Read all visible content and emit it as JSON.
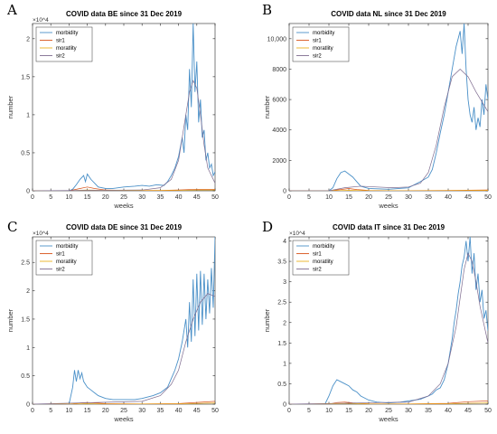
{
  "chart_data": [
    {
      "panel": "A",
      "type": "line",
      "title": "COVID data BE since 31 Dec 2019",
      "xlabel": "weeks",
      "ylabel": "number",
      "xlim": [
        0,
        50
      ],
      "ylim": [
        0,
        2.2
      ],
      "y_exponent_label": "×10^4",
      "xticks": [
        0,
        5,
        10,
        15,
        20,
        25,
        30,
        35,
        40,
        45,
        50
      ],
      "yticks": [
        "0",
        "0.5",
        "1",
        "1.5",
        "2"
      ],
      "ytick_values": [
        0,
        0.5,
        1,
        1.5,
        2
      ],
      "legend": [
        "morbidity",
        "sir1",
        "moratlity",
        "sir2"
      ],
      "legend_position": "top-left",
      "series": [
        {
          "name": "morbidity",
          "color": "#4a90c8",
          "x": [
            0,
            10,
            11,
            12,
            13,
            14,
            14.5,
            15,
            16,
            17,
            18,
            20,
            22,
            25,
            28,
            30,
            32,
            34,
            36,
            37,
            38,
            39,
            40,
            41,
            41.5,
            42,
            42.5,
            43,
            43.5,
            44,
            44.5,
            45,
            45.5,
            46,
            46.5,
            47,
            47.5,
            48,
            48.5,
            49,
            49.5,
            50
          ],
          "y": [
            0,
            0,
            0.02,
            0.08,
            0.15,
            0.2,
            0.12,
            0.22,
            0.15,
            0.1,
            0.05,
            0.03,
            0.03,
            0.05,
            0.06,
            0.07,
            0.06,
            0.08,
            0.07,
            0.12,
            0.2,
            0.3,
            0.45,
            0.7,
            0.5,
            1.0,
            0.8,
            1.6,
            1.1,
            2.2,
            1.3,
            1.7,
            0.9,
            1.2,
            0.7,
            0.8,
            0.4,
            0.5,
            0.3,
            0.35,
            0.2,
            0.25
          ]
        },
        {
          "name": "sir1",
          "color": "#d95319",
          "x": [
            0,
            10,
            13,
            15,
            17,
            20,
            25,
            30,
            35,
            40,
            45,
            50
          ],
          "y": [
            0,
            0,
            0.03,
            0.05,
            0.03,
            0.01,
            0.005,
            0.005,
            0.005,
            0.01,
            0.02,
            0.02
          ]
        },
        {
          "name": "moratlity",
          "color": "#edb120",
          "x": [
            0,
            10,
            15,
            20,
            30,
            40,
            45,
            50
          ],
          "y": [
            0,
            0,
            0.01,
            0.003,
            0.002,
            0.005,
            0.01,
            0.01
          ]
        },
        {
          "name": "sir2",
          "color": "#7e6b8f",
          "x": [
            0,
            30,
            35,
            38,
            40,
            41,
            42,
            43,
            44,
            45,
            46,
            47,
            48,
            50
          ],
          "y": [
            0,
            0.01,
            0.04,
            0.15,
            0.4,
            0.7,
            1.0,
            1.3,
            1.45,
            1.35,
            1.0,
            0.6,
            0.3,
            0.1
          ]
        }
      ]
    },
    {
      "panel": "B",
      "type": "line",
      "title": "COVID data NL since 31 Dec 2019",
      "xlabel": "weeks",
      "ylabel": "number",
      "xlim": [
        0,
        50
      ],
      "ylim": [
        0,
        11000
      ],
      "y_exponent_label": "",
      "xticks": [
        0,
        5,
        10,
        15,
        20,
        25,
        30,
        35,
        40,
        45,
        50
      ],
      "yticks": [
        "0",
        "2000",
        "4000",
        "6000",
        "8000",
        "10,000"
      ],
      "ytick_values": [
        0,
        2000,
        4000,
        6000,
        8000,
        10000
      ],
      "legend": [
        "morbidity",
        "sir1",
        "moratlity",
        "sir2"
      ],
      "legend_position": "top-left",
      "series": [
        {
          "name": "morbidity",
          "color": "#4a90c8",
          "x": [
            0,
            10,
            11,
            12,
            13,
            14,
            15,
            16,
            17,
            18,
            20,
            25,
            30,
            33,
            35,
            36,
            37,
            38,
            39,
            40,
            41,
            42,
            43,
            43.5,
            44,
            44.5,
            45,
            45.5,
            46,
            46.5,
            47,
            47.5,
            48,
            48.5,
            49,
            49.5,
            50
          ],
          "y": [
            0,
            0,
            200,
            800,
            1200,
            1300,
            1100,
            900,
            600,
            300,
            150,
            100,
            200,
            600,
            900,
            1400,
            2500,
            3800,
            5000,
            6500,
            8000,
            9500,
            10500,
            9000,
            11000,
            8000,
            6000,
            5000,
            4500,
            5500,
            4000,
            4800,
            4200,
            6000,
            5000,
            7000,
            6000
          ]
        },
        {
          "name": "sir1",
          "color": "#d95319",
          "x": [
            0,
            10,
            13,
            15,
            17,
            20,
            25,
            30,
            40,
            45,
            50
          ],
          "y": [
            0,
            0,
            80,
            150,
            80,
            20,
            10,
            10,
            20,
            40,
            50
          ]
        },
        {
          "name": "moratlity",
          "color": "#edb120",
          "x": [
            0,
            10,
            15,
            20,
            30,
            40,
            50
          ],
          "y": [
            0,
            0,
            30,
            10,
            5,
            10,
            20
          ]
        },
        {
          "name": "sir2",
          "color": "#7e6b8f",
          "x": [
            0,
            10,
            14,
            18,
            22,
            26,
            30,
            33,
            35,
            37,
            39,
            41,
            43,
            45,
            47,
            50
          ],
          "y": [
            0,
            0,
            200,
            300,
            250,
            200,
            250,
            500,
            1200,
            3000,
            5500,
            7500,
            8000,
            7500,
            6500,
            5200
          ]
        }
      ]
    },
    {
      "panel": "C",
      "type": "line",
      "title": "COVID data DE since 31 Dec 2019",
      "xlabel": "weeks",
      "ylabel": "number",
      "xlim": [
        0,
        50
      ],
      "ylim": [
        0,
        2.95
      ],
      "y_exponent_label": "×10^4",
      "xticks": [
        0,
        5,
        10,
        15,
        20,
        25,
        30,
        35,
        40,
        45,
        50
      ],
      "yticks": [
        "0",
        "0.5",
        "1",
        "1.5",
        "2",
        "2.5"
      ],
      "ytick_values": [
        0,
        0.5,
        1,
        1.5,
        2,
        2.5
      ],
      "legend": [
        "morbidity",
        "sir1",
        "moratlity",
        "sir2"
      ],
      "legend_position": "top-left",
      "series": [
        {
          "name": "morbidity",
          "color": "#4a90c8",
          "x": [
            0,
            10,
            11,
            11.5,
            12,
            12.5,
            13,
            13.5,
            14,
            15,
            16,
            17,
            18,
            20,
            22,
            25,
            28,
            30,
            33,
            35,
            37,
            38,
            39,
            40,
            41,
            42,
            42.5,
            43,
            43.5,
            44,
            44.5,
            45,
            45.5,
            46,
            46.5,
            47,
            47.5,
            48,
            48.5,
            49,
            49.5,
            50
          ],
          "y": [
            0,
            0,
            0.3,
            0.6,
            0.4,
            0.6,
            0.45,
            0.55,
            0.4,
            0.3,
            0.25,
            0.2,
            0.15,
            0.1,
            0.08,
            0.08,
            0.08,
            0.1,
            0.15,
            0.2,
            0.3,
            0.45,
            0.6,
            0.8,
            1.1,
            1.5,
            1.0,
            1.8,
            1.1,
            2.2,
            1.2,
            2.3,
            1.3,
            2.35,
            1.4,
            2.3,
            1.5,
            2.2,
            1.6,
            2.4,
            1.7,
            2.95
          ]
        },
        {
          "name": "sir1",
          "color": "#d95319",
          "x": [
            0,
            10,
            13,
            15,
            20,
            30,
            40,
            45,
            50
          ],
          "y": [
            0,
            0,
            0.02,
            0.03,
            0.01,
            0.005,
            0.01,
            0.03,
            0.05
          ]
        },
        {
          "name": "moratlity",
          "color": "#edb120",
          "x": [
            0,
            10,
            15,
            20,
            30,
            40,
            50
          ],
          "y": [
            0,
            0,
            0.01,
            0.003,
            0.002,
            0.005,
            0.02
          ]
        },
        {
          "name": "sir2",
          "color": "#7e6b8f",
          "x": [
            0,
            30,
            35,
            38,
            40,
            42,
            44,
            46,
            48,
            50
          ],
          "y": [
            0,
            0.05,
            0.15,
            0.35,
            0.6,
            1.1,
            1.5,
            1.8,
            1.95,
            1.9
          ]
        }
      ]
    },
    {
      "panel": "D",
      "type": "line",
      "title": "COVID data IT since 31 Dec 2019",
      "xlabel": "weeks",
      "ylabel": "number",
      "xlim": [
        0,
        50
      ],
      "ylim": [
        0,
        4.1
      ],
      "y_exponent_label": "×10^4",
      "xticks": [
        0,
        5,
        10,
        15,
        20,
        25,
        30,
        35,
        40,
        45,
        50
      ],
      "yticks": [
        "0",
        "0.5",
        "1",
        "1.5",
        "2",
        "2.5",
        "3",
        "3.5",
        "4"
      ],
      "ytick_values": [
        0,
        0.5,
        1,
        1.5,
        2,
        2.5,
        3,
        3.5,
        4
      ],
      "legend": [
        "morbidity",
        "sir1",
        "moratlity",
        "sir2"
      ],
      "legend_position": "top-left",
      "series": [
        {
          "name": "morbidity",
          "color": "#4a90c8",
          "x": [
            0,
            9,
            10,
            11,
            12,
            13,
            14,
            15,
            16,
            17,
            18,
            20,
            22,
            25,
            28,
            30,
            33,
            35,
            36,
            37,
            38,
            38.5,
            39,
            39.5,
            40,
            40.5,
            41,
            41.5,
            42,
            42.5,
            43,
            43.5,
            44,
            44.5,
            45,
            45.5,
            46,
            46.5,
            47,
            47.5,
            48,
            48.5,
            49,
            49.5,
            50
          ],
          "y": [
            0,
            0,
            0.2,
            0.45,
            0.6,
            0.55,
            0.5,
            0.45,
            0.35,
            0.3,
            0.2,
            0.1,
            0.05,
            0.03,
            0.05,
            0.08,
            0.12,
            0.2,
            0.25,
            0.35,
            0.4,
            0.5,
            0.6,
            0.8,
            1.0,
            1.3,
            1.6,
            2.0,
            2.3,
            2.7,
            3.0,
            3.4,
            3.6,
            4.0,
            3.5,
            4.1,
            3.2,
            3.7,
            2.8,
            3.2,
            2.5,
            2.8,
            2.1,
            2.3,
            1.8
          ]
        },
        {
          "name": "sir1",
          "color": "#d95319",
          "x": [
            0,
            10,
            12,
            14,
            16,
            20,
            30,
            40,
            45,
            50
          ],
          "y": [
            0,
            0,
            0.04,
            0.05,
            0.03,
            0.01,
            0.005,
            0.02,
            0.06,
            0.08
          ]
        },
        {
          "name": "moratlity",
          "color": "#edb120",
          "x": [
            0,
            10,
            15,
            20,
            30,
            40,
            50
          ],
          "y": [
            0,
            0,
            0.02,
            0.005,
            0.002,
            0.01,
            0.03
          ]
        },
        {
          "name": "sir2",
          "color": "#7e6b8f",
          "x": [
            0,
            30,
            35,
            38,
            40,
            42,
            43,
            44,
            45,
            46,
            47,
            48,
            50
          ],
          "y": [
            0,
            0.05,
            0.2,
            0.5,
            1.0,
            1.9,
            2.6,
            3.3,
            3.7,
            3.5,
            3.0,
            2.4,
            1.5
          ]
        }
      ]
    }
  ]
}
